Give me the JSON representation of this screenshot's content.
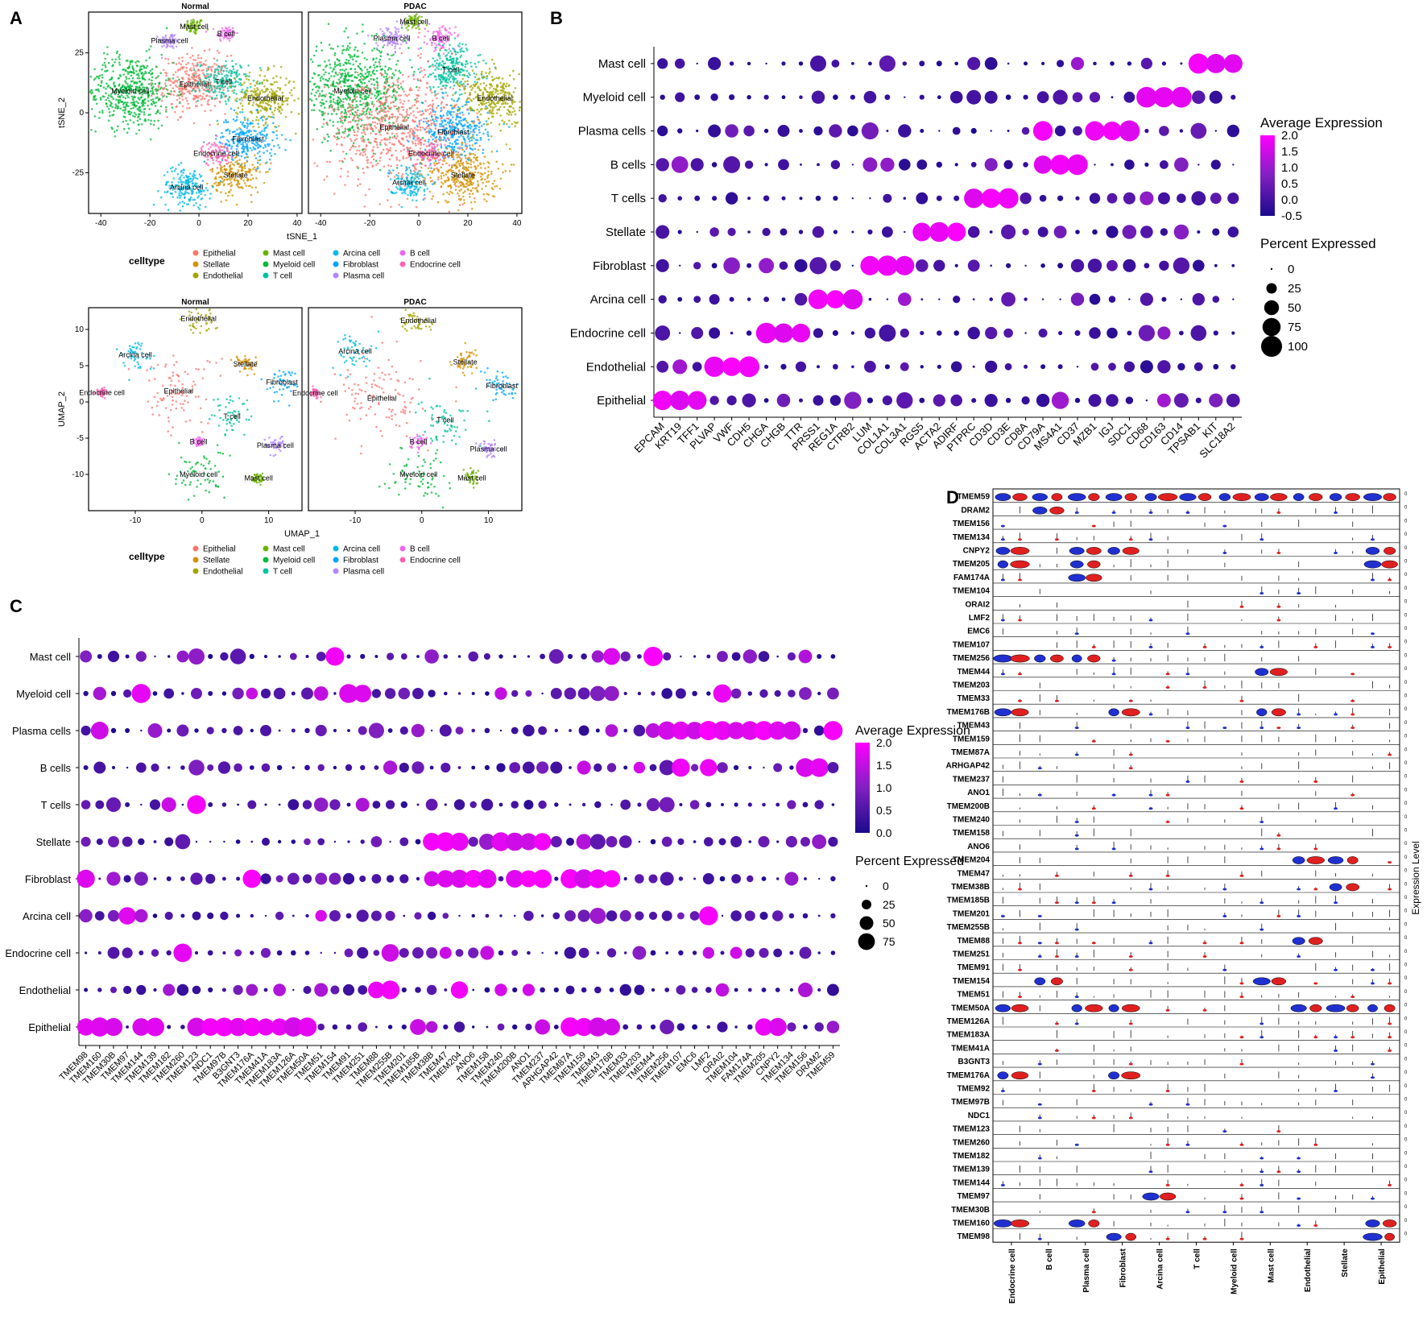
{
  "panel_letters": [
    "A",
    "B",
    "C",
    "D"
  ],
  "legend_titles": {
    "celltype": "celltype",
    "avg_expression": "Average Expression",
    "pct_expressed": "Percent Expressed",
    "violin_axis": "Expression Level"
  },
  "colors": {
    "gradient_high": "#ff00ff",
    "gradient_mid": "#8020c0",
    "gradient_low": "#1a0a8c",
    "violin_normal": "#2030d0",
    "violin_pdac": "#e02020"
  },
  "chart_data": [
    {
      "type": "scatter",
      "id": "A_tsne",
      "panels": [
        "Normal",
        "PDAC"
      ],
      "xlabel": "tSNE_1",
      "ylabel": "tSNE_2",
      "xticks": [
        -40,
        -20,
        0,
        20,
        40
      ],
      "yticks": [
        25,
        0,
        -25
      ],
      "xlim": [
        -45,
        42
      ],
      "ylim": [
        -42,
        42
      ],
      "clusters": {
        "Normal": [
          {
            "label": "Mast cell",
            "x": -2,
            "y": 36,
            "spread": 2
          },
          {
            "label": "B cell",
            "x": 11,
            "y": 33,
            "spread": 2
          },
          {
            "label": "Plasma cell",
            "x": -12,
            "y": 30,
            "spread": 2
          },
          {
            "label": "Epithelial",
            "x": -2,
            "y": 12,
            "spread": 7
          },
          {
            "label": "T cell",
            "x": 10,
            "y": 13,
            "spread": 5
          },
          {
            "label": "Myeloid cell",
            "x": -28,
            "y": 9,
            "spread": 9
          },
          {
            "label": "Endothelial",
            "x": 27,
            "y": 6,
            "spread": 6
          },
          {
            "label": "Fibroblast",
            "x": 20,
            "y": -11,
            "spread": 6
          },
          {
            "label": "Endocrine cell",
            "x": 7,
            "y": -17,
            "spread": 3
          },
          {
            "label": "Stellate",
            "x": 15,
            "y": -26,
            "spread": 5
          },
          {
            "label": "Arcina cell",
            "x": -5,
            "y": -31,
            "spread": 5
          }
        ],
        "PDAC": [
          {
            "label": "Mast cell",
            "x": -2,
            "y": 38,
            "spread": 2
          },
          {
            "label": "Plasma cell",
            "x": -11,
            "y": 31,
            "spread": 3
          },
          {
            "label": "B cell",
            "x": 9,
            "y": 31,
            "spread": 3
          },
          {
            "label": "T cell",
            "x": 13,
            "y": 18,
            "spread": 6
          },
          {
            "label": "Myeloid cell",
            "x": -27,
            "y": 9,
            "spread": 11
          },
          {
            "label": "Endothelial",
            "x": 31,
            "y": 6,
            "spread": 7
          },
          {
            "label": "Fibroblast",
            "x": 14,
            "y": -8,
            "spread": 7
          },
          {
            "label": "Epithelial",
            "x": -10,
            "y": -6,
            "spread": 14
          },
          {
            "label": "Endocrine cell",
            "x": 5,
            "y": -17,
            "spread": 3
          },
          {
            "label": "Stellate",
            "x": 18,
            "y": -26,
            "spread": 7
          },
          {
            "label": "Arcina cell",
            "x": -4,
            "y": -29,
            "spread": 4
          }
        ]
      }
    },
    {
      "type": "scatter",
      "id": "A_umap",
      "panels": [
        "Normal",
        "PDAC"
      ],
      "xlabel": "UMAP_1",
      "ylabel": "UMAP_2",
      "xticks": [
        -10,
        0,
        10
      ],
      "yticks": [
        10,
        5,
        0,
        -5,
        -10
      ],
      "xlim": [
        -17,
        15
      ],
      "ylim": [
        -15,
        13
      ],
      "clusters": {
        "Normal": [
          {
            "label": "Endothelial",
            "x": -0.5,
            "y": 11.5,
            "spread": 1.2
          },
          {
            "label": "Arcina cell",
            "x": -10,
            "y": 6.5,
            "spread": 1.3
          },
          {
            "label": "Stellate",
            "x": 6.5,
            "y": 5.2,
            "spread": 0.9
          },
          {
            "label": "Fibroblast",
            "x": 12,
            "y": 2.7,
            "spread": 1.1
          },
          {
            "label": "Epithelial",
            "x": -3.5,
            "y": 1.5,
            "spread": 3
          },
          {
            "label": "Endocrine cell",
            "x": -15,
            "y": 1.3,
            "spread": 0.4
          },
          {
            "label": "T cell",
            "x": 4.5,
            "y": -2,
            "spread": 1.6
          },
          {
            "label": "B cell",
            "x": -0.5,
            "y": -5.5,
            "spread": 0.4
          },
          {
            "label": "Plasma cell",
            "x": 11,
            "y": -6,
            "spread": 0.8
          },
          {
            "label": "Myeloid cell",
            "x": -0.5,
            "y": -10,
            "spread": 2
          },
          {
            "label": "Mast cell",
            "x": 8.5,
            "y": -10.5,
            "spread": 0.5
          }
        ],
        "PDAC": [
          {
            "label": "Endothelial",
            "x": -0.5,
            "y": 11.2,
            "spread": 1.3
          },
          {
            "label": "Arcina cell",
            "x": -10,
            "y": 7,
            "spread": 1.5
          },
          {
            "label": "Stellate",
            "x": 6.5,
            "y": 5.5,
            "spread": 1.1
          },
          {
            "label": "Fibroblast",
            "x": 12,
            "y": 2.2,
            "spread": 1.3
          },
          {
            "label": "Epithelial",
            "x": -6,
            "y": 0.5,
            "spread": 3.5
          },
          {
            "label": "Endocrine cell",
            "x": -16,
            "y": 1.2,
            "spread": 0.4
          },
          {
            "label": "T cell",
            "x": 3.5,
            "y": -2.5,
            "spread": 2
          },
          {
            "label": "B cell",
            "x": -0.5,
            "y": -5.5,
            "spread": 0.6
          },
          {
            "label": "Plasma cell",
            "x": 10,
            "y": -6.5,
            "spread": 0.8
          },
          {
            "label": "Myeloid cell",
            "x": -0.5,
            "y": -10,
            "spread": 2.2
          },
          {
            "label": "Mast cell",
            "x": 7.5,
            "y": -10.5,
            "spread": 0.6
          }
        ]
      }
    },
    {
      "type": "dotplot",
      "id": "B",
      "rows": [
        "Mast cell",
        "Myeloid cell",
        "Plasma cells",
        "B cells",
        "T cells",
        "Stellate",
        "Fibroblast",
        "Arcina cell",
        "Endocrine cell",
        "Endothelial",
        "Epithelial"
      ],
      "genes": [
        "EPCAM",
        "KRT19",
        "TFF1",
        "PLVAP",
        "VWF",
        "CDH5",
        "CHGA",
        "CHGB",
        "TTR",
        "PRSS1",
        "REG1A",
        "CTRB2",
        "LUM",
        "COL1A1",
        "COL3A1",
        "RGS5",
        "ACTA2",
        "ADIRF",
        "PTPRC",
        "CD3D",
        "CD3E",
        "CD8A",
        "CD79A",
        "MS4A1",
        "CD37",
        "MZB1",
        "IGJ",
        "SDC1",
        "CD68",
        "CD163",
        "CD14",
        "TPSAB1",
        "KIT",
        "SLC18A2"
      ],
      "avg_expression_ticks": [
        "2.0",
        "1.5",
        "1.0",
        "0.5",
        "0.0",
        "-0.5"
      ],
      "avg_range": [
        -0.7,
        2.0
      ],
      "pct_ticks": [
        "0",
        "25",
        "50",
        "75",
        "100"
      ],
      "high": [
        {
          "row": "Mast cell",
          "genes": [
            "TPSAB1",
            "KIT",
            "SLC18A2"
          ]
        },
        {
          "row": "Myeloid cell",
          "genes": [
            "CD68",
            "CD163",
            "CD14"
          ]
        },
        {
          "row": "Plasma cells",
          "genes": [
            "CD79A",
            "MZB1",
            "IGJ",
            "SDC1"
          ]
        },
        {
          "row": "B cells",
          "genes": [
            "CD79A",
            "MS4A1",
            "CD37"
          ]
        },
        {
          "row": "T cells",
          "genes": [
            "PTPRC",
            "CD3D",
            "CD3E"
          ]
        },
        {
          "row": "Stellate",
          "genes": [
            "RGS5",
            "ACTA2",
            "ADIRF"
          ]
        },
        {
          "row": "Fibroblast",
          "genes": [
            "LUM",
            "COL1A1",
            "COL3A1"
          ]
        },
        {
          "row": "Arcina cell",
          "genes": [
            "PRSS1",
            "REG1A",
            "CTRB2"
          ]
        },
        {
          "row": "Endocrine cell",
          "genes": [
            "CHGA",
            "CHGB",
            "TTR"
          ]
        },
        {
          "row": "Endothelial",
          "genes": [
            "PLVAP",
            "VWF",
            "CDH5"
          ]
        },
        {
          "row": "Epithelial",
          "genes": [
            "EPCAM",
            "KRT19",
            "TFF1"
          ]
        }
      ]
    },
    {
      "type": "dotplot",
      "id": "C",
      "rows": [
        "Mast cell",
        "Myeloid cell",
        "Plasma cells",
        "B cells",
        "T cells",
        "Stellate",
        "Fibroblast",
        "Arcina cell",
        "Endocrine cell",
        "Endothelial",
        "Epithelial"
      ],
      "genes": [
        "TMEM98",
        "TMEM160",
        "TMEM30B",
        "TMEM97",
        "TMEM144",
        "TMEM139",
        "TMEM182",
        "TMEM260",
        "TMEM123",
        "NDC1",
        "TMEM97B",
        "B3GNT3",
        "TMEM176A",
        "TMEM41A",
        "TMEM183A",
        "TMEM126A",
        "TMEM50A",
        "TMEM51",
        "TMEM154",
        "TMEM91",
        "TMEM251",
        "TMEM88",
        "TMEM255B",
        "TMEM201",
        "TMEM185B",
        "TMEM38B",
        "TMEM47",
        "TMEM204",
        "ANO6",
        "TMEM158",
        "TMEM240",
        "TMEM200B",
        "ANO1",
        "TMEM237",
        "ARHGAP42",
        "TMEM87A",
        "TMEM159",
        "TMEM43",
        "TMEM176B",
        "TMEM33",
        "TMEM203",
        "TMEM44",
        "TMEM256",
        "TMEM107",
        "EMC6",
        "LMF2",
        "ORAI2",
        "TMEM104",
        "FAM174A",
        "TMEM205",
        "CNPY2",
        "TMEM134",
        "TMEM156",
        "DRAM2",
        "TMEM59"
      ],
      "avg_expression_ticks": [
        "2.0",
        "1.5",
        "1.0",
        "0.5",
        "0.0"
      ],
      "avg_range": [
        0,
        2.0
      ],
      "pct_ticks": [
        "0",
        "25",
        "50",
        "75"
      ],
      "high": [
        {
          "row": "Mast cell",
          "genes": [
            "TMEM154",
            "TMEM176B",
            "TMEM44"
          ]
        },
        {
          "row": "Myeloid cell",
          "genes": [
            "TMEM144",
            "TMEM91",
            "TMEM251",
            "ORAI2"
          ]
        },
        {
          "row": "Plasma cells",
          "genes": [
            "TMEM160",
            "TMEM256",
            "TMEM107",
            "EMC6",
            "LMF2",
            "ORAI2",
            "TMEM104",
            "FAM174A",
            "TMEM205",
            "CNPY2",
            "TMEM134",
            "TMEM59"
          ]
        },
        {
          "row": "B cells",
          "genes": [
            "TMEM107",
            "LMF2",
            "TMEM156",
            "DRAM2"
          ]
        },
        {
          "row": "T cells",
          "genes": [
            "TMEM123"
          ]
        },
        {
          "row": "Stellate",
          "genes": [
            "TMEM38B",
            "TMEM47",
            "TMEM204",
            "TMEM240",
            "TMEM200B",
            "ANO1",
            "TMEM237"
          ]
        },
        {
          "row": "Fibroblast",
          "genes": [
            "TMEM98",
            "TMEM176A",
            "TMEM47",
            "TMEM204",
            "ANO6",
            "TMEM158",
            "TMEM200B",
            "ANO1",
            "TMEM237",
            "TMEM87A",
            "TMEM159",
            "TMEM43",
            "TMEM176B"
          ]
        },
        {
          "row": "Arcina cell",
          "genes": [
            "TMEM97",
            "LMF2"
          ]
        },
        {
          "row": "Endocrine cell",
          "genes": [
            "TMEM260",
            "TMEM255B"
          ]
        },
        {
          "row": "Endothelial",
          "genes": [
            "TMEM88",
            "TMEM255B",
            "TMEM204"
          ]
        },
        {
          "row": "Epithelial",
          "genes": [
            "TMEM98",
            "TMEM160",
            "TMEM30B",
            "TMEM144",
            "TMEM139",
            "TMEM123",
            "NDC1",
            "TMEM97B",
            "B3GNT3",
            "TMEM176A",
            "TMEM41A",
            "TMEM183A",
            "TMEM126A",
            "TMEM50A",
            "TMEM87A",
            "TMEM159",
            "TMEM43",
            "TMEM176B",
            "TMEM205",
            "CNPY2"
          ]
        }
      ]
    },
    {
      "type": "violin",
      "id": "D",
      "genes": [
        "TMEM59",
        "DRAM2",
        "TMEM156",
        "TMEM134",
        "CNPY2",
        "TMEM205",
        "FAM174A",
        "TMEM104",
        "ORAI2",
        "LMF2",
        "EMC6",
        "TMEM107",
        "TMEM256",
        "TMEM44",
        "TMEM203",
        "TMEM33",
        "TMEM176B",
        "TMEM43",
        "TMEM159",
        "TMEM87A",
        "ARHGAP42",
        "TMEM237",
        "ANO1",
        "TMEM200B",
        "TMEM240",
        "TMEM158",
        "ANO6",
        "TMEM204",
        "TMEM47",
        "TMEM38B",
        "TMEM185B",
        "TMEM201",
        "TMEM255B",
        "TMEM88",
        "TMEM251",
        "TMEM91",
        "TMEM154",
        "TMEM51",
        "TMEM50A",
        "TMEM126A",
        "TMEM183A",
        "TMEM41A",
        "B3GNT3",
        "TMEM176A",
        "TMEM92",
        "TMEM97B",
        "NDC1",
        "TMEM123",
        "TMEM260",
        "TMEM182",
        "TMEM139",
        "TMEM144",
        "TMEM97",
        "TMEM30B",
        "TMEM160",
        "TMEM98"
      ],
      "celltypes": [
        "Endocrine cell",
        "B cell",
        "Plasma cell",
        "Fibroblast",
        "Arcina cell",
        "T cell",
        "Myeloid cell",
        "Mast cell",
        "Endothelial",
        "Stellate",
        "Epithelial"
      ],
      "ylabel": "Expression Level",
      "strong": [
        {
          "gene": "TMEM59",
          "cells": [
            "Endocrine cell",
            "B cell",
            "Plasma cell",
            "Fibroblast",
            "Arcina cell",
            "T cell",
            "Myeloid cell",
            "Mast cell",
            "Endothelial",
            "Stellate",
            "Epithelial"
          ]
        },
        {
          "gene": "DRAM2",
          "cells": [
            "B cell"
          ]
        },
        {
          "gene": "CNPY2",
          "cells": [
            "Endocrine cell",
            "Plasma cell",
            "Fibroblast",
            "Epithelial"
          ]
        },
        {
          "gene": "TMEM205",
          "cells": [
            "Endocrine cell",
            "Plasma cell",
            "Epithelial"
          ]
        },
        {
          "gene": "FAM174A",
          "cells": [
            "Plasma cell"
          ]
        },
        {
          "gene": "TMEM256",
          "cells": [
            "Endocrine cell",
            "B cell",
            "Plasma cell"
          ]
        },
        {
          "gene": "TMEM44",
          "cells": [
            "Mast cell"
          ]
        },
        {
          "gene": "TMEM176B",
          "cells": [
            "Endocrine cell",
            "Fibroblast",
            "Mast cell"
          ]
        },
        {
          "gene": "TMEM204",
          "cells": [
            "Endothelial",
            "Stellate"
          ]
        },
        {
          "gene": "TMEM38B",
          "cells": [
            "Stellate"
          ]
        },
        {
          "gene": "TMEM88",
          "cells": [
            "Endothelial"
          ]
        },
        {
          "gene": "TMEM154",
          "cells": [
            "B cell",
            "Mast cell"
          ]
        },
        {
          "gene": "TMEM50A",
          "cells": [
            "Endocrine cell",
            "Plasma cell",
            "Fibroblast",
            "Endothelial",
            "Stellate",
            "Epithelial"
          ]
        },
        {
          "gene": "TMEM176A",
          "cells": [
            "Endocrine cell",
            "Fibroblast"
          ]
        },
        {
          "gene": "TMEM97",
          "cells": [
            "Arcina cell"
          ]
        },
        {
          "gene": "TMEM160",
          "cells": [
            "Endocrine cell",
            "Plasma cell",
            "Epithelial"
          ]
        },
        {
          "gene": "TMEM98",
          "cells": [
            "Fibroblast",
            "Epithelial"
          ]
        }
      ]
    }
  ],
  "celltype_legend": [
    {
      "label": "Epithelial",
      "color": "#f8766d"
    },
    {
      "label": "Stellate",
      "color": "#d39200"
    },
    {
      "label": "Endothelial",
      "color": "#a3a500"
    },
    {
      "label": "Mast cell",
      "color": "#6bb100"
    },
    {
      "label": "Myeloid cell",
      "color": "#00ba38"
    },
    {
      "label": "T cell",
      "color": "#00c19f"
    },
    {
      "label": "Arcina cell",
      "color": "#00b9e3"
    },
    {
      "label": "Fibroblast",
      "color": "#00a5ff"
    },
    {
      "label": "Plasma cell",
      "color": "#b385ff"
    },
    {
      "label": "B cell",
      "color": "#ef67eb"
    },
    {
      "label": "Endocrine cell",
      "color": "#ff63b6"
    }
  ]
}
